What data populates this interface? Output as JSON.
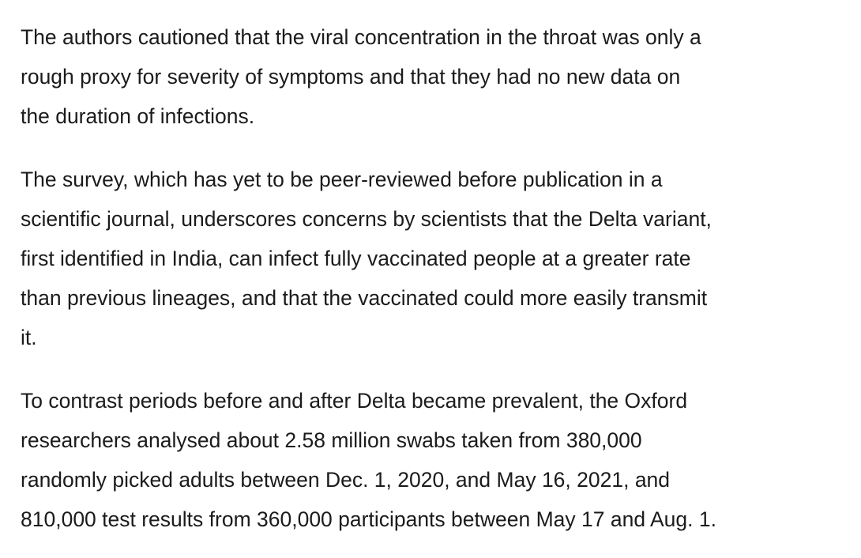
{
  "article": {
    "paragraphs": [
      {
        "lines": [
          "The authors cautioned that the viral concentration in the throat was only a",
          "rough proxy for severity of symptoms and that they had no new data on",
          "the duration of infections."
        ]
      },
      {
        "lines": [
          "The survey, which has yet to be peer-reviewed before publication in a",
          "scientific journal, underscores concerns by scientists that the Delta variant,",
          "first identified in India, can infect fully vaccinated people at a greater rate",
          "than previous lineages, and that the vaccinated could more easily transmit",
          "it."
        ]
      },
      {
        "lines": [
          "To contrast periods before and after Delta became prevalent, the Oxford",
          "researchers analysed about 2.58 million swabs taken from 380,000",
          "randomly picked adults between Dec. 1, 2020, and May 16, 2021, and",
          "810,000 test results from 360,000 participants between May 17 and Aug. 1."
        ]
      }
    ]
  }
}
